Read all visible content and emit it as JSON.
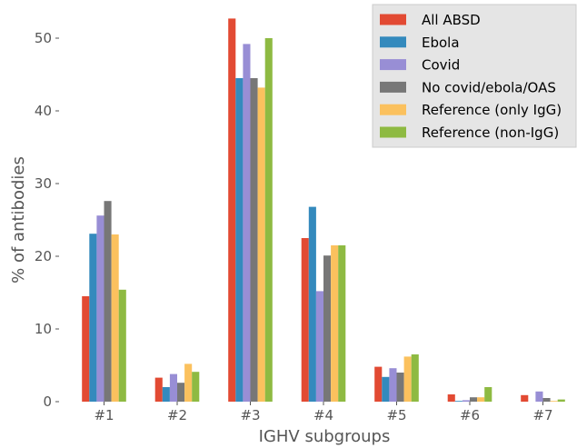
{
  "chart_data": {
    "type": "bar",
    "title": "",
    "xlabel": "IGHV subgroups",
    "ylabel": "% of antibodies",
    "categories": [
      "#1",
      "#2",
      "#3",
      "#4",
      "#5",
      "#6",
      "#7"
    ],
    "ylim": [
      0,
      55
    ],
    "yticks": [
      0,
      10,
      20,
      30,
      40,
      50
    ],
    "grid": false,
    "legend": "top-right",
    "series": [
      {
        "name": "All ABSD",
        "color": "#E24A33",
        "values": [
          14.5,
          3.3,
          52.7,
          22.5,
          4.8,
          1.0,
          0.9
        ]
      },
      {
        "name": "Ebola",
        "color": "#348ABD",
        "values": [
          23.1,
          2.0,
          44.5,
          26.8,
          3.4,
          0.1,
          0.0
        ]
      },
      {
        "name": "Covid",
        "color": "#988ED5",
        "values": [
          25.6,
          3.8,
          49.2,
          15.2,
          4.6,
          0.2,
          1.4
        ]
      },
      {
        "name": "No covid/ebola/OAS",
        "color": "#777777",
        "values": [
          27.6,
          2.6,
          44.5,
          20.1,
          4.0,
          0.6,
          0.5
        ]
      },
      {
        "name": "Reference (only IgG)",
        "color": "#FBC15E",
        "values": [
          23.0,
          5.2,
          43.2,
          21.5,
          6.2,
          0.6,
          0.1
        ]
      },
      {
        "name": "Reference (non-IgG)",
        "color": "#8EBA42",
        "values": [
          15.4,
          4.1,
          50.0,
          21.5,
          6.5,
          2.0,
          0.3
        ]
      }
    ]
  }
}
